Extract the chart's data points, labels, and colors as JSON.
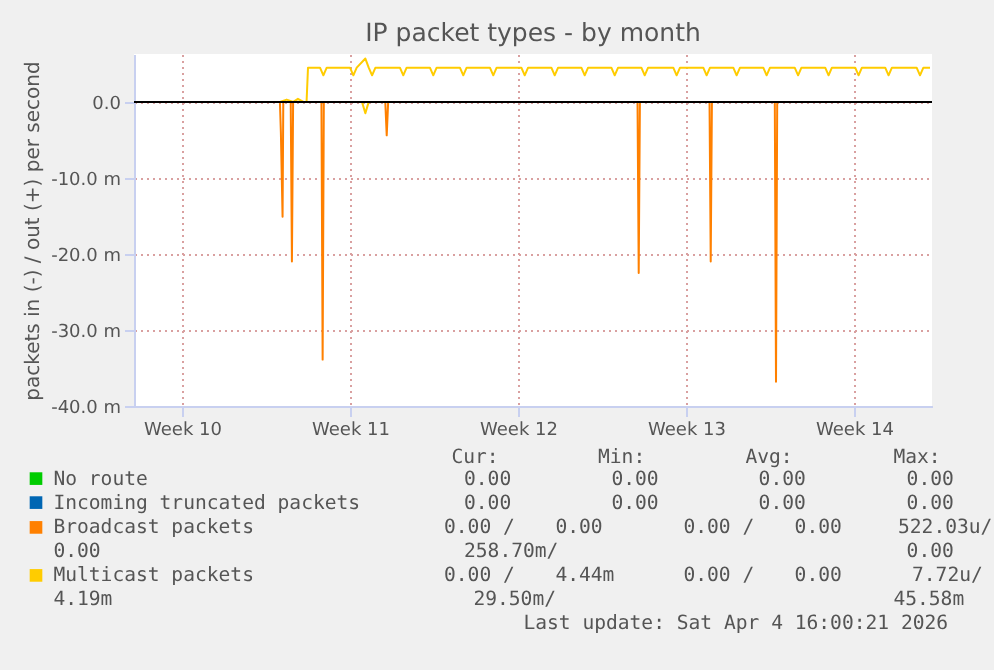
{
  "chart_data": {
    "type": "line",
    "title": "IP packet types - by month",
    "ylabel": "packets in (-) / out (+) per second",
    "xlim": [
      "2026-03-03T12:00",
      "2026-04-05T18:00"
    ],
    "xticks": [
      {
        "value": "2026-03-05T12:00",
        "label": "Week 10"
      },
      {
        "value": "2026-03-12T12:00",
        "label": "Week 11"
      },
      {
        "value": "2026-03-19T12:00",
        "label": "Week 12"
      },
      {
        "value": "2026-03-26T12:00",
        "label": "Week 13"
      },
      {
        "value": "2026-04-02T12:00",
        "label": "Week 14"
      }
    ],
    "ylim": [
      -40,
      6.3
    ],
    "yticks": [
      {
        "value": -40,
        "label": "-40.0 m"
      },
      {
        "value": -30,
        "label": "-30.0 m"
      },
      {
        "value": -20,
        "label": "-20.0 m"
      },
      {
        "value": -10,
        "label": "-10.0 m"
      },
      {
        "value": 0,
        "label": "0.0"
      }
    ],
    "grid": true,
    "legend": "bottom",
    "series": [
      {
        "name": "No route",
        "color": "#00cc00"
      },
      {
        "name": "Incoming truncated packets",
        "color": "#0066b3"
      },
      {
        "name": "Broadcast packets",
        "color": "#ff8000",
        "x": [
          "2026-03-09T13:55",
          "2026-03-09T14:53",
          "2026-03-09T16:34",
          "2026-03-09T17:17",
          "2026-03-10T00:43",
          "2026-03-10T01:55",
          "2026-03-10T03:07",
          "2026-03-11T07:26",
          "2026-03-11T08:38",
          "2026-03-11T09:50",
          "2026-03-13T23:17",
          "2026-03-14T00:43",
          "2026-03-14T02:10",
          "2026-03-24T11:31",
          "2026-03-24T12:43",
          "2026-03-24T13:55",
          "2026-03-27T11:31",
          "2026-03-27T12:43",
          "2026-03-27T13:55",
          "2026-03-30T04:48",
          "2026-03-30T06:00",
          "2026-03-30T07:12",
          "2026-04-05T16:00"
        ],
        "values": [
          0,
          -4.1,
          -15.1,
          0,
          0,
          -21.0,
          0,
          0,
          -33.9,
          0,
          0,
          -4.4,
          0,
          0,
          -22.5,
          0,
          0,
          -21.0,
          0,
          0,
          -36.8,
          0,
          0
        ]
      },
      {
        "name": "Multicast packets",
        "color": "#ffcc00",
        "x": [
          "2026-03-09T13:55",
          "2026-03-09T20:38",
          "2026-03-10T03:22",
          "2026-03-10T07:55",
          "2026-03-10T13:26",
          "2026-03-10T16:34",
          "2026-03-10T18:00",
          "2026-03-11T06:00",
          "2026-03-11T09:22",
          "2026-03-11T12:43",
          "2026-03-12T12:00",
          "2026-03-12T15:22",
          "2026-03-12T18:43",
          "2026-03-13T03:22",
          "2026-03-13T06:43",
          "2026-03-13T10:05",
          "2026-03-13T13:26",
          "2026-03-14T13:55",
          "2026-03-14T17:17",
          "2026-03-14T20:38",
          "2026-03-15T19:55",
          "2026-03-15T23:17",
          "2026-03-16T02:38",
          "2026-03-17T01:55",
          "2026-03-17T05:17",
          "2026-03-17T08:38",
          "2026-03-18T07:55",
          "2026-03-18T11:17",
          "2026-03-18T14:38",
          "2026-03-19T15:22",
          "2026-03-19T18:43",
          "2026-03-19T22:05",
          "2026-03-20T21:22",
          "2026-03-21T00:43",
          "2026-03-21T04:05",
          "2026-03-22T03:22",
          "2026-03-22T06:43",
          "2026-03-22T10:05",
          "2026-03-23T09:22",
          "2026-03-23T12:43",
          "2026-03-23T16:05",
          "2026-03-24T15:22",
          "2026-03-24T18:43",
          "2026-03-24T22:05",
          "2026-03-25T23:17",
          "2026-03-26T02:38",
          "2026-03-26T06:00",
          "2026-03-27T05:17",
          "2026-03-27T08:38",
          "2026-03-27T12:00",
          "2026-03-28T11:17",
          "2026-03-28T14:38",
          "2026-03-28T18:00",
          "2026-03-29T17:17",
          "2026-03-29T20:38",
          "2026-03-30T00:00",
          "2026-03-31T00:43",
          "2026-03-31T04:05",
          "2026-03-31T07:26",
          "2026-04-01T07:12",
          "2026-04-01T10:34",
          "2026-04-01T13:55",
          "2026-04-02T13:12",
          "2026-04-02T16:34",
          "2026-04-02T19:55",
          "2026-04-03T19:12",
          "2026-04-03T22:34",
          "2026-04-04T01:55",
          "2026-04-05T02:38",
          "2026-04-05T06:00",
          "2026-04-05T09:22",
          "2026-04-05T16:00"
        ],
        "values": [
          0,
          0.3,
          0,
          0.4,
          0,
          0,
          4.5,
          4.5,
          3.5,
          4.5,
          4.5,
          3.5,
          4.5,
          5.7,
          4.5,
          3.5,
          4.5,
          4.5,
          3.5,
          4.5,
          4.5,
          3.5,
          4.5,
          4.5,
          3.5,
          4.5,
          4.5,
          3.5,
          4.5,
          4.5,
          3.5,
          4.5,
          4.5,
          3.5,
          4.5,
          4.5,
          3.5,
          4.5,
          4.5,
          3.5,
          4.5,
          4.5,
          3.5,
          4.5,
          4.5,
          3.5,
          4.5,
          4.5,
          3.5,
          4.5,
          4.5,
          3.5,
          4.5,
          4.5,
          3.5,
          4.5,
          4.5,
          3.5,
          4.5,
          4.5,
          3.5,
          4.5,
          4.5,
          3.5,
          4.5,
          4.5,
          3.5,
          4.5,
          4.5,
          3.5,
          4.5,
          4.5
        ]
      },
      {
        "color": "#ffcc00",
        "x": [
          "2026-03-13T00:00",
          "2026-03-13T03:22",
          "2026-03-13T06:43"
        ],
        "values": [
          0,
          -1.5,
          0
        ]
      }
    ],
    "ref_lines": [
      {
        "axis": "y",
        "value": 0,
        "color": "#000000"
      }
    ],
    "annotations": [
      "Cur:",
      "Min:",
      "Avg:",
      "Max:",
      "0.00",
      "0.00",
      "0.00",
      "0.00",
      "0.00",
      "0.00",
      "0.00",
      "0.00",
      "0.00 /",
      "0.00",
      "0.00 /",
      "0.00",
      "522.03u/",
      "0.00",
      "258.70m/",
      "0.00",
      "0.00 /",
      "4.44m",
      "0.00 /",
      "0.00",
      "7.72u/",
      "4.19m",
      "29.50m/",
      "45.58m",
      "Last update: Sat Apr  4 16:00:21 2026"
    ]
  }
}
